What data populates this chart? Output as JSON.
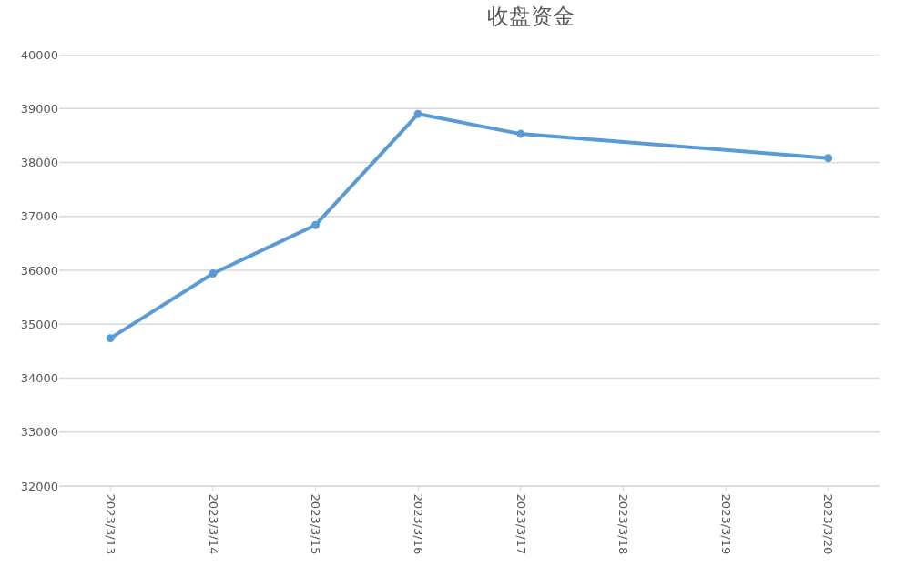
{
  "chart_data": {
    "type": "line",
    "title": "收盘资金",
    "x": [
      "2023-03-13",
      "2023-03-14",
      "2023-03-15",
      "2023-03-16",
      "2023-03-17",
      "2023-03-20"
    ],
    "series": [
      {
        "color": "#5b9bd5",
        "values": [
          34740,
          35940,
          36840,
          38900,
          38530,
          38080
        ]
      }
    ],
    "xlim": [
      "2023-03-12T12:00",
      "2023-03-20T12:00"
    ],
    "xticks": [
      {
        "value": "2023-03-13",
        "label": "2023/3/13"
      },
      {
        "value": "2023-03-14",
        "label": "2023/3/14"
      },
      {
        "value": "2023-03-15",
        "label": "2023/3/15"
      },
      {
        "value": "2023-03-16",
        "label": "2023/3/16"
      },
      {
        "value": "2023-03-17",
        "label": "2023/3/17"
      },
      {
        "value": "2023-03-18",
        "label": "2023/3/18"
      },
      {
        "value": "2023-03-19",
        "label": "2023/3/19"
      },
      {
        "value": "2023-03-20",
        "label": "2023/3/20"
      }
    ],
    "ylim": [
      32000,
      40000
    ],
    "yticks": [
      32000,
      33000,
      34000,
      35000,
      36000,
      37000,
      38000,
      39000,
      40000
    ],
    "grid": "y",
    "marker": "circle",
    "line_style": "solid"
  }
}
